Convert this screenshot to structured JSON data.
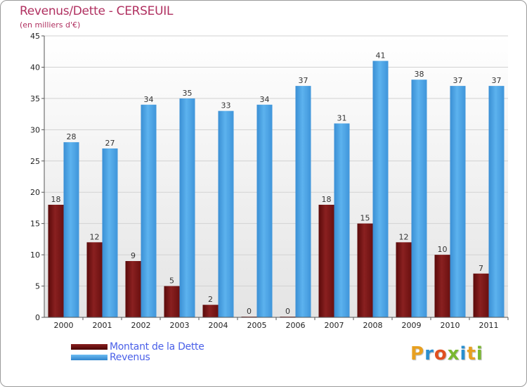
{
  "title": "Revenus/Dette - CERSEUIL",
  "subtitle": "(en milliers d'€)",
  "legend": {
    "debt_label": "Montant de la Dette",
    "revenue_label": "Revenus"
  },
  "logo_text": "Proxiti",
  "colors": {
    "debt": "#7a1414",
    "revenue": "#4aa3e6",
    "title": "#b03060",
    "legend_text": "#4a60e8"
  },
  "chart_data": {
    "type": "bar",
    "categories": [
      "2000",
      "2001",
      "2002",
      "2003",
      "2004",
      "2005",
      "2006",
      "2007",
      "2008",
      "2009",
      "2010",
      "2011"
    ],
    "series": [
      {
        "name": "Montant de la Dette",
        "values": [
          18,
          12,
          9,
          5,
          2,
          0,
          0,
          18,
          15,
          12,
          10,
          7
        ]
      },
      {
        "name": "Revenus",
        "values": [
          28,
          27,
          34,
          35,
          33,
          34,
          37,
          31,
          41,
          38,
          37,
          37
        ]
      }
    ],
    "yticks": [
      0,
      5,
      10,
      15,
      20,
      25,
      30,
      35,
      40,
      45
    ],
    "ylim": [
      0,
      45
    ],
    "grid": true,
    "legend_position": "bottom-left"
  }
}
